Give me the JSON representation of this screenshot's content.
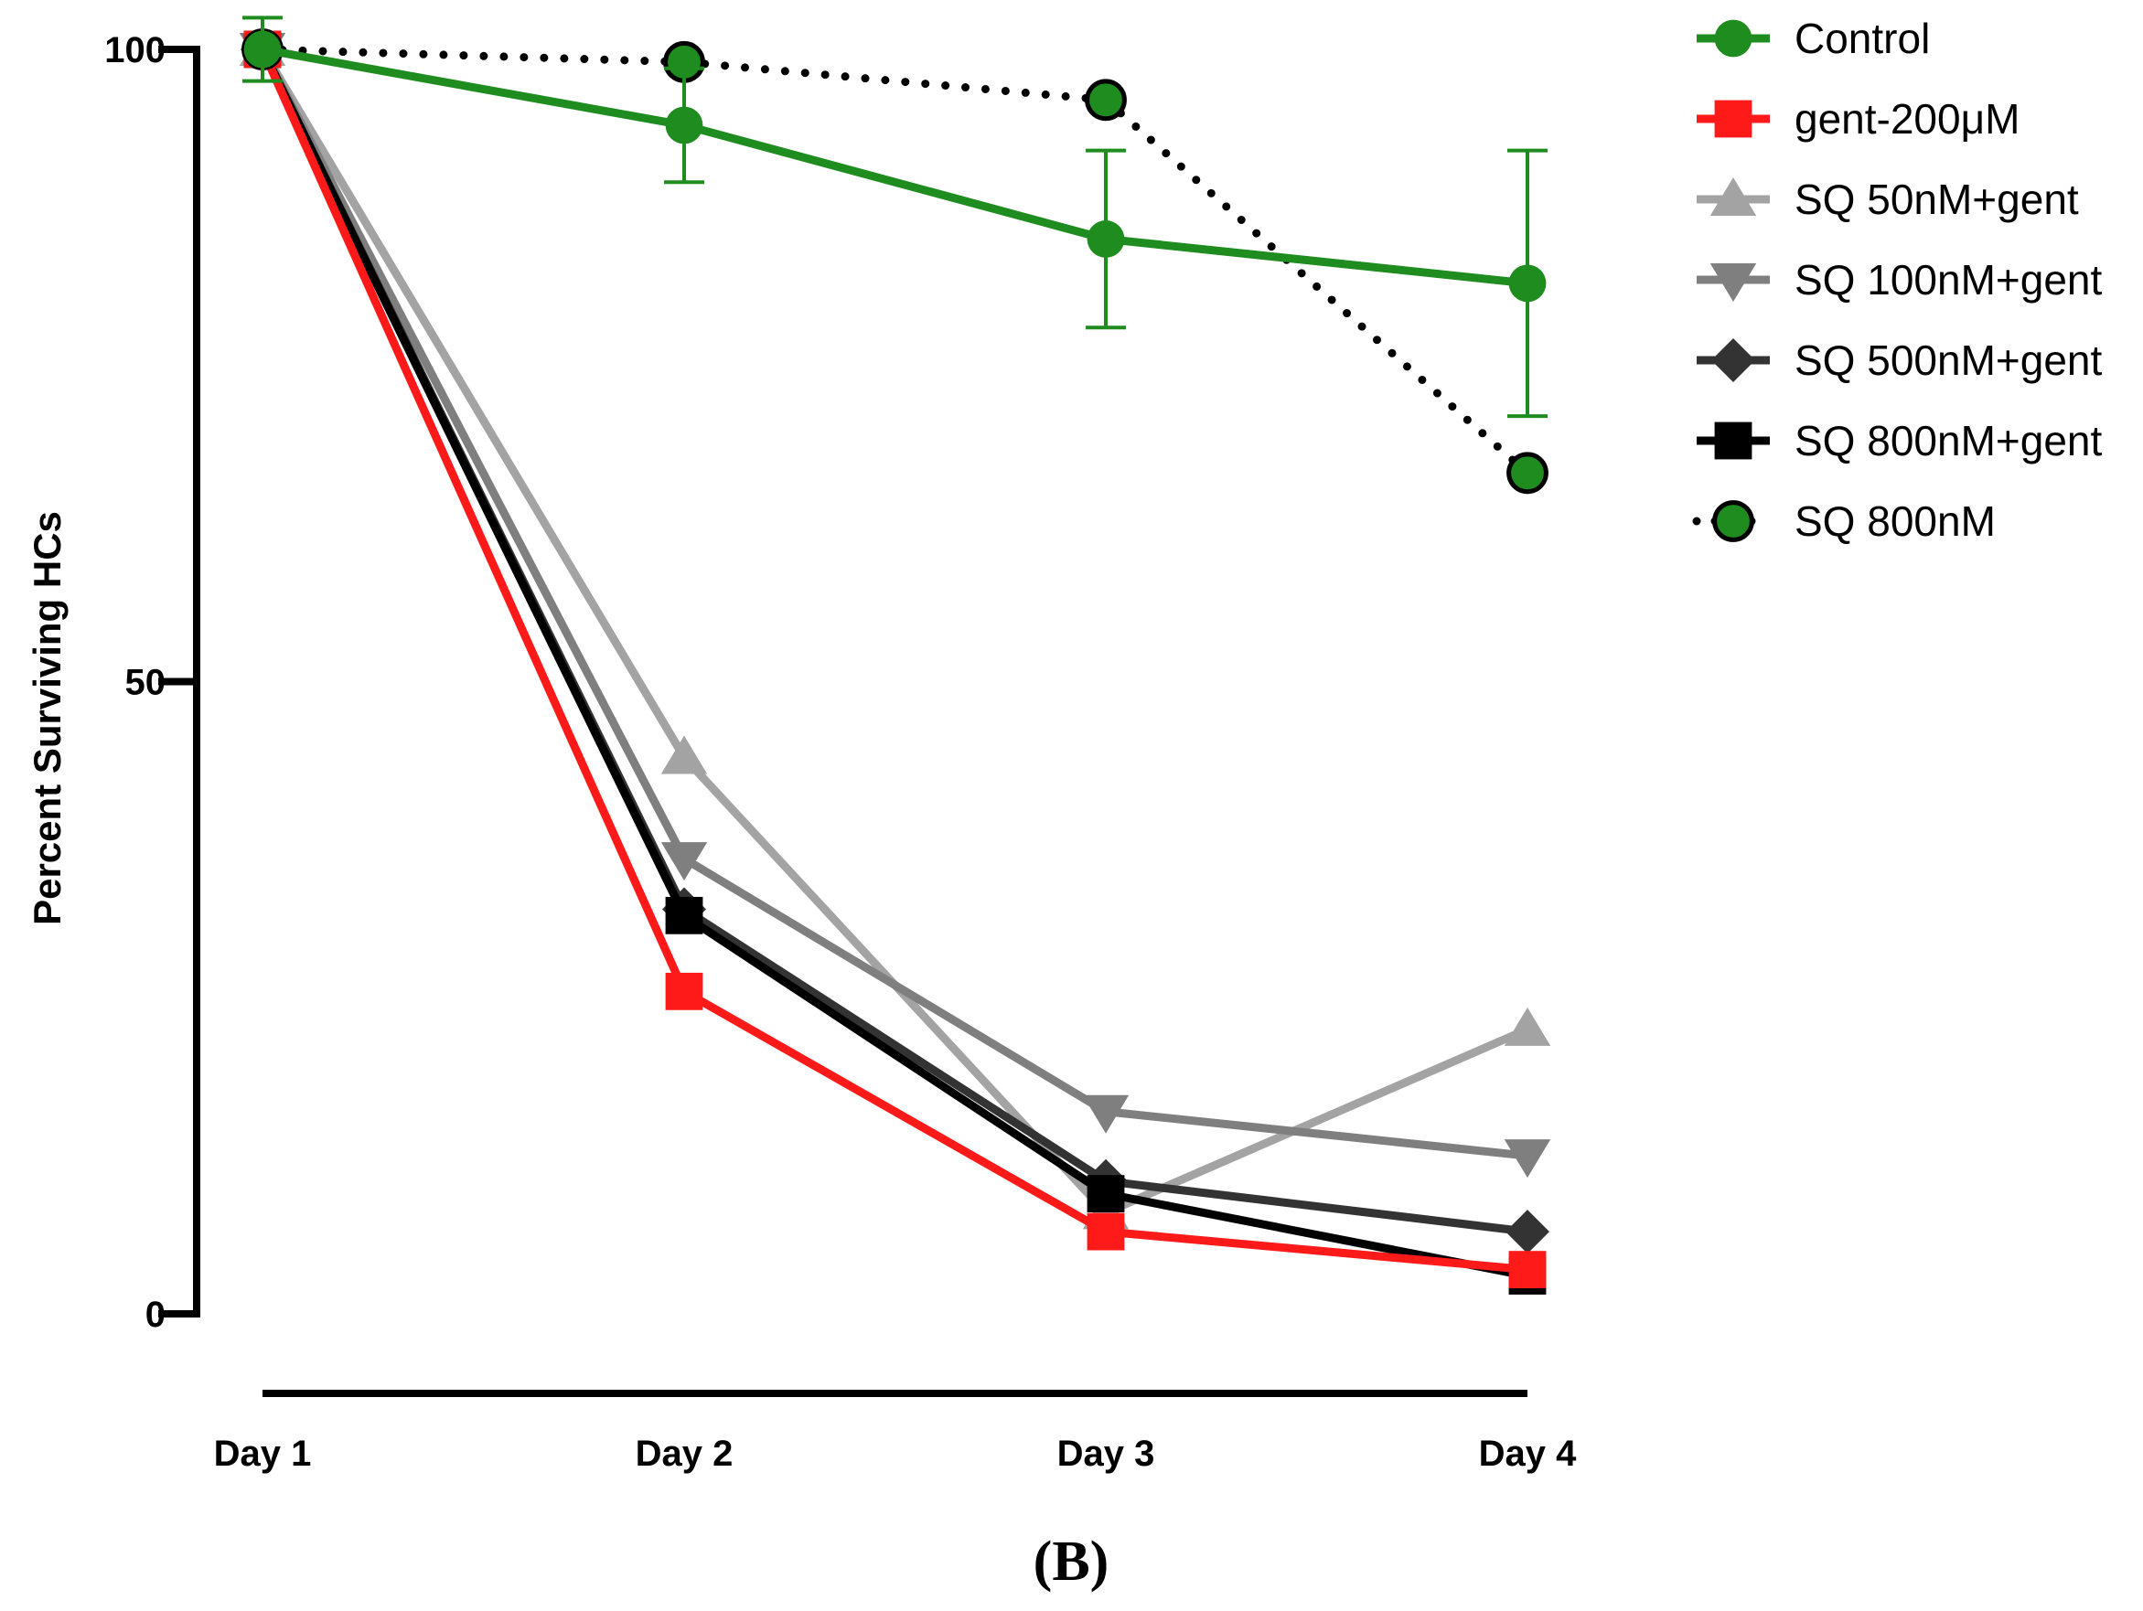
{
  "panel_label": "(B)",
  "chart_data": {
    "type": "line",
    "title": "",
    "xlabel": "",
    "ylabel": "Percent Surviving HCs",
    "categories": [
      "Day 1",
      "Day 2",
      "Day 3",
      "Day 4"
    ],
    "ylim": [
      0,
      100
    ],
    "yticks": [
      "0",
      "50",
      "100"
    ],
    "grid": false,
    "legend_position": "top-right",
    "series": [
      {
        "name": "SQ 50nM+gent",
        "color": "#a3a3a3",
        "marker": "triangle-up",
        "line": "solid",
        "values": [
          100,
          44,
          8,
          22.5
        ]
      },
      {
        "name": "SQ 100nM+gent",
        "color": "#7f7f7f",
        "marker": "triangle-down",
        "line": "solid",
        "values": [
          100,
          36,
          16,
          12.5
        ]
      },
      {
        "name": "SQ 500nM+gent",
        "color": "#333333",
        "marker": "diamond",
        "line": "solid",
        "values": [
          100,
          32,
          10.5,
          6.5
        ]
      },
      {
        "name": "SQ 800nM+gent",
        "color": "#000000",
        "marker": "square",
        "line": "solid",
        "values": [
          100,
          31.5,
          9.5,
          3
        ]
      },
      {
        "name": "gent-200μM",
        "color": "#ff1a1a",
        "marker": "square",
        "line": "solid",
        "values": [
          100,
          25.5,
          6.5,
          3.5
        ]
      },
      {
        "name": "SQ 800nM",
        "color": "#1e8c1e",
        "marker": "circle-outlined",
        "line": "dotted",
        "values": [
          100,
          99,
          96,
          66.5
        ]
      },
      {
        "name": "Control",
        "color": "#1e8c1e",
        "marker": "circle",
        "line": "solid",
        "values": [
          100,
          94,
          85,
          81.5
        ],
        "errors": [
          2.5,
          4.5,
          7,
          10.5
        ]
      }
    ],
    "legend_order": [
      "Control",
      "gent-200μM",
      "SQ 50nM+gent",
      "SQ 100nM+gent",
      "SQ 500nM+gent",
      "SQ 800nM+gent",
      "SQ 800nM"
    ]
  }
}
